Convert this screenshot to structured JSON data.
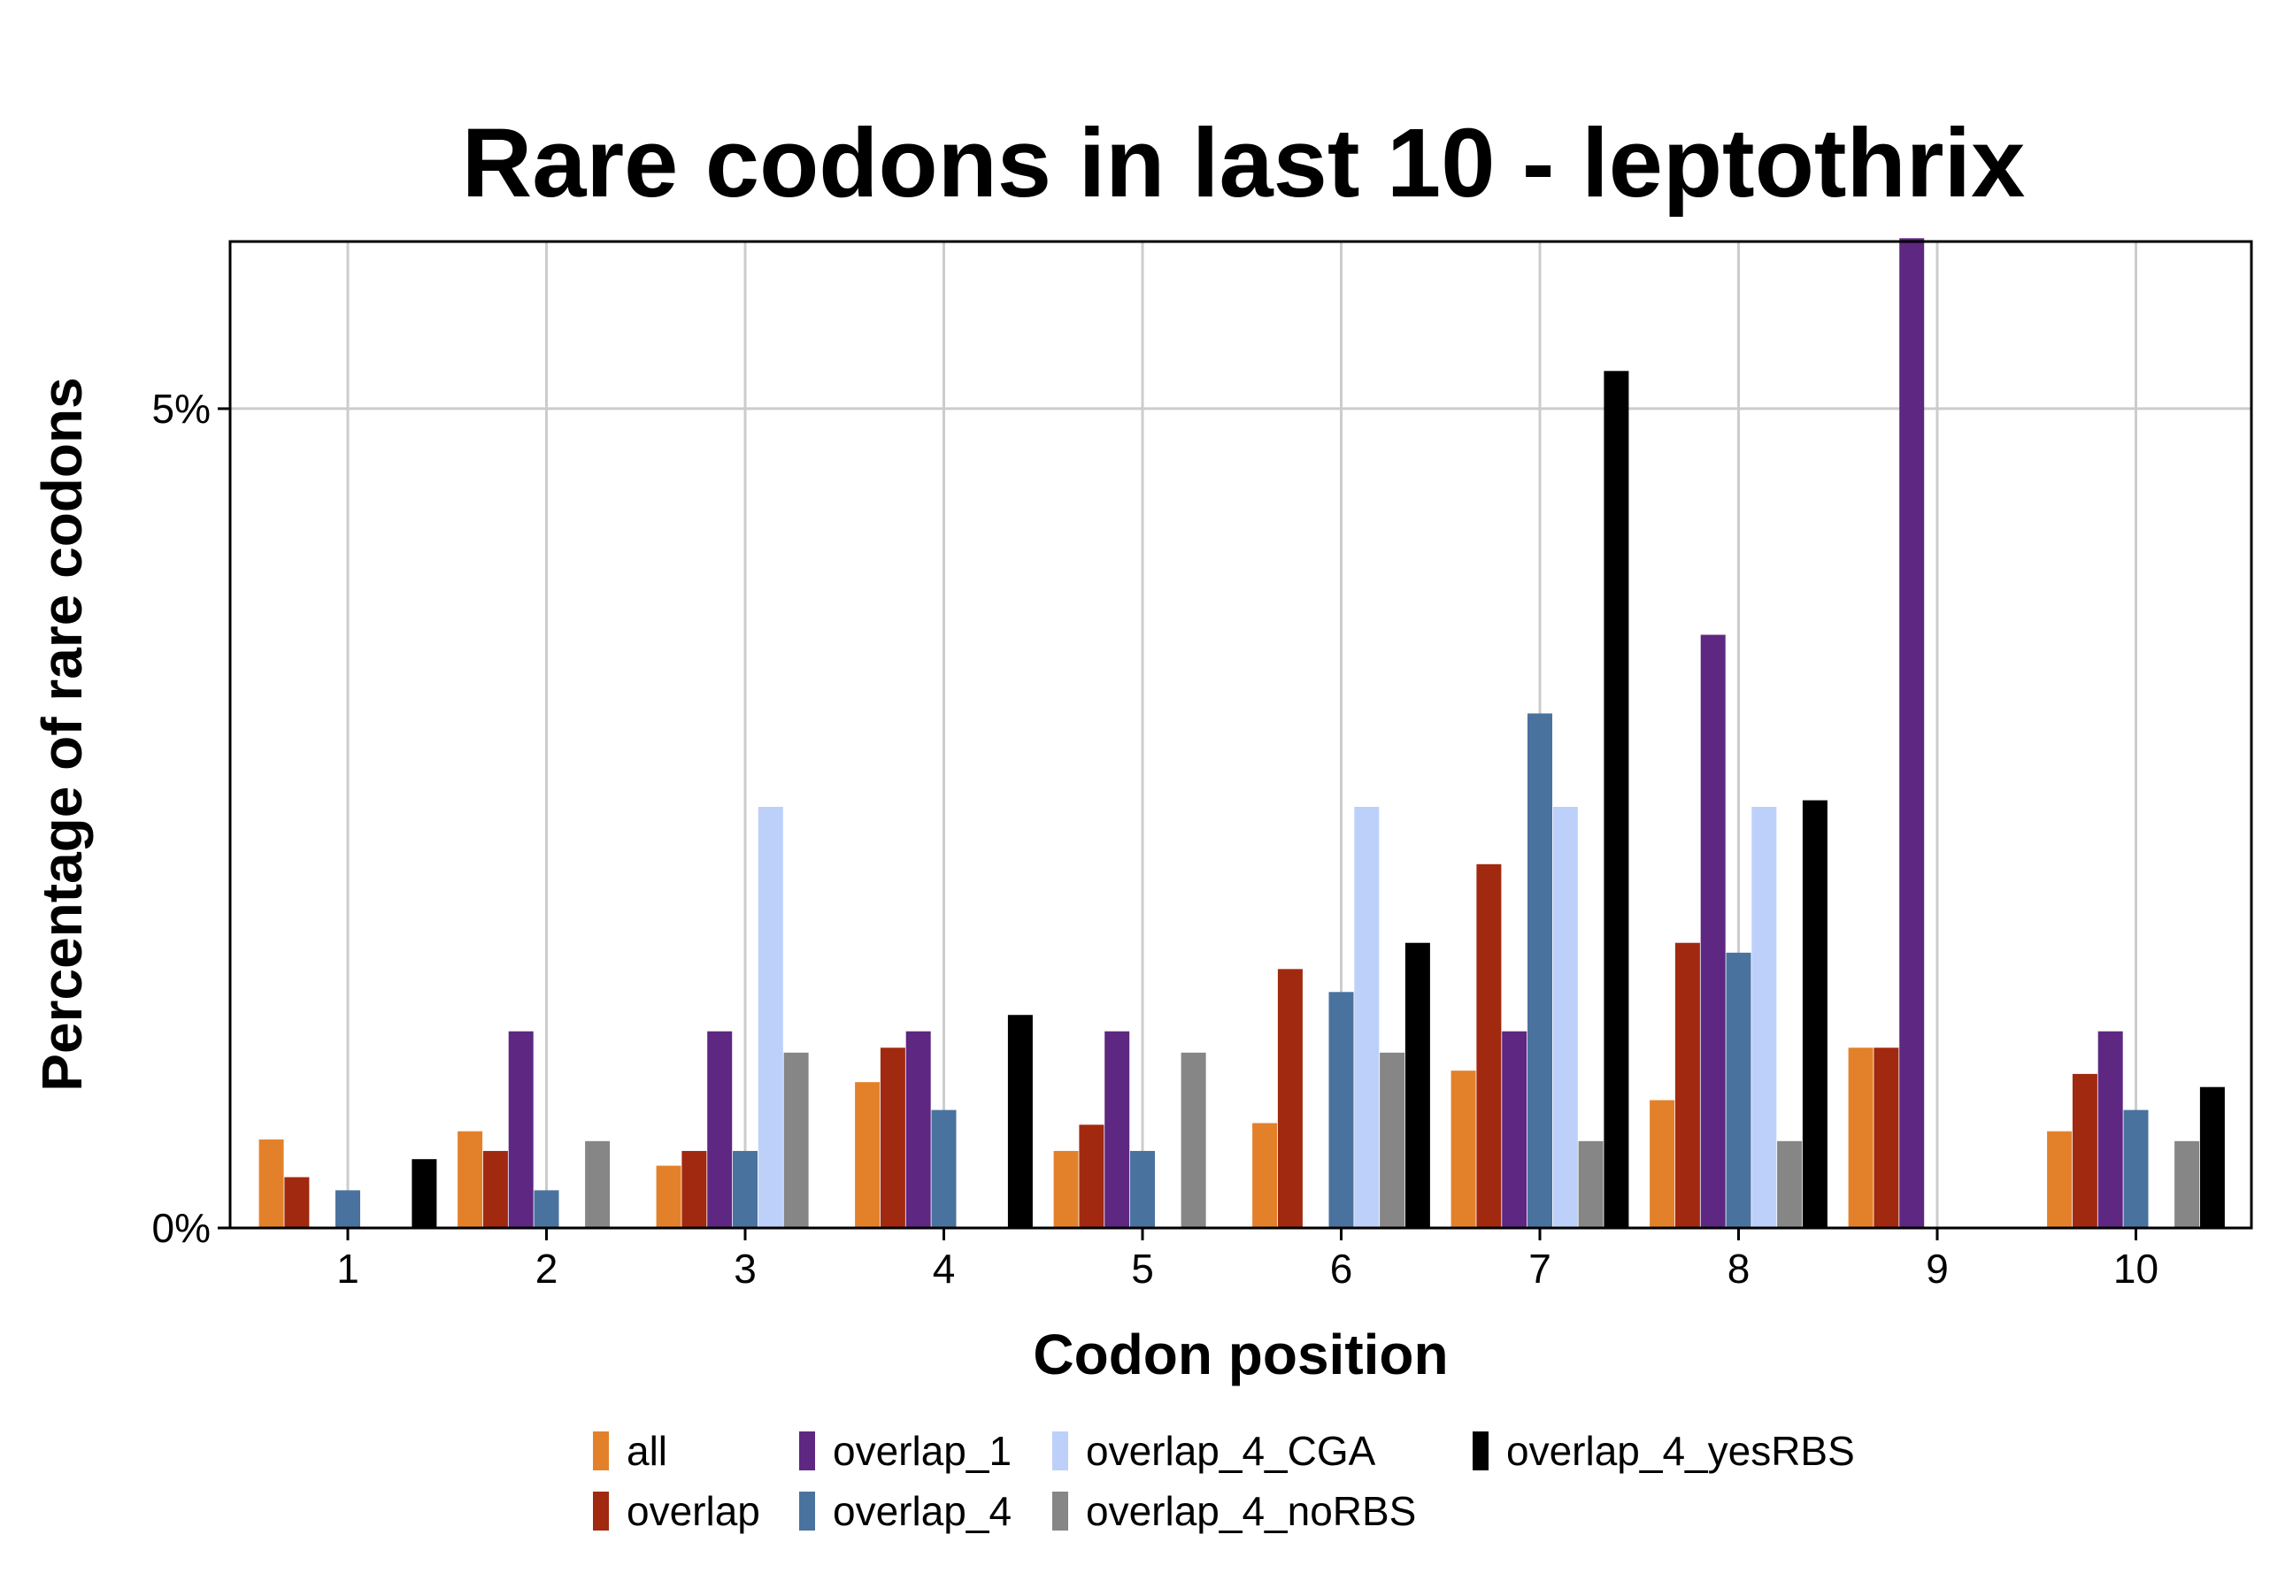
{
  "chart_data": {
    "type": "bar",
    "title": "Rare codons in last 10 - leptothrix",
    "xlabel": "Codon position",
    "ylabel": "Percentage of rare codons",
    "categories": [
      "1",
      "2",
      "3",
      "4",
      "5",
      "6",
      "7",
      "8",
      "9",
      "10"
    ],
    "y_tick_values": [
      0,
      5
    ],
    "y_tick_labels": [
      "0%",
      "5%"
    ],
    "ylim": [
      0,
      6.02
    ],
    "grid": true,
    "legend_position": "bottom",
    "series": [
      {
        "name": "all",
        "color": "#E3812B",
        "values": [
          0.54,
          0.59,
          0.38,
          0.89,
          0.47,
          0.64,
          0.96,
          0.78,
          1.1,
          0.59
        ]
      },
      {
        "name": "overlap",
        "color": "#A1290F",
        "values": [
          0.31,
          0.47,
          0.47,
          1.1,
          0.63,
          1.58,
          2.22,
          1.74,
          1.1,
          0.94
        ]
      },
      {
        "name": "overlap_1",
        "color": "#5E2781",
        "values": [
          0.0,
          1.2,
          1.2,
          1.2,
          1.2,
          0.0,
          1.2,
          3.62,
          6.04,
          1.2
        ]
      },
      {
        "name": "overlap_4",
        "color": "#4A729E",
        "values": [
          0.23,
          0.23,
          0.47,
          0.72,
          0.47,
          1.44,
          3.14,
          1.68,
          0.0,
          0.72
        ]
      },
      {
        "name": "overlap_4_CGA",
        "color": "#BDD0FA",
        "values": [
          0.0,
          0.0,
          2.57,
          0.0,
          0.0,
          2.57,
          2.57,
          2.57,
          0.0,
          0.0
        ]
      },
      {
        "name": "overlap_4_noRBS",
        "color": "#868686",
        "values": [
          0.0,
          0.53,
          1.07,
          0.0,
          1.07,
          1.07,
          0.53,
          0.53,
          0.0,
          0.53
        ]
      },
      {
        "name": "overlap_4_yesRBS",
        "color": "#000000",
        "values": [
          0.42,
          0.0,
          0.0,
          1.3,
          0.0,
          1.74,
          5.23,
          2.61,
          0.0,
          0.86
        ]
      }
    ]
  }
}
